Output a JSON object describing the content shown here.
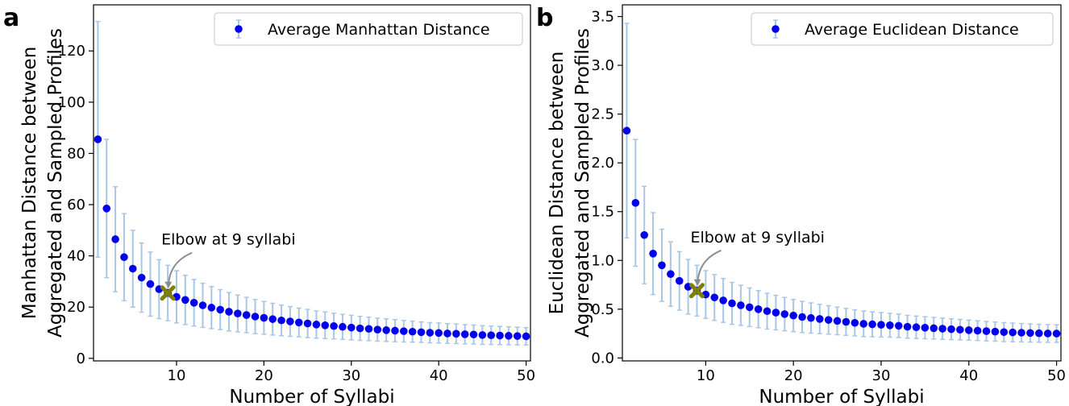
{
  "chart_data": [
    {
      "type": "scatter",
      "panel_label": "a",
      "xlabel": "Number of Syllabi",
      "ylabel_lines": [
        "Manhattan Distance between",
        "Aggregated and Sampled Profiles"
      ],
      "xlim": [
        0.5,
        50.5
      ],
      "ylim": [
        -1,
        138
      ],
      "xticks": [
        10,
        20,
        30,
        40,
        50
      ],
      "yticks": [
        0,
        20,
        40,
        60,
        80,
        100,
        120
      ],
      "legend": {
        "label": "Average Manhattan Distance",
        "location": "top-right"
      },
      "annotation": {
        "text": "Elbow at 9 syllabi",
        "x": 9,
        "y": 25.5
      },
      "series": [
        {
          "name": "Average Manhattan Distance",
          "x": [
            1,
            2,
            3,
            4,
            5,
            6,
            7,
            8,
            9,
            10,
            11,
            12,
            13,
            14,
            15,
            16,
            17,
            18,
            19,
            20,
            21,
            22,
            23,
            24,
            25,
            26,
            27,
            28,
            29,
            30,
            31,
            32,
            33,
            34,
            35,
            36,
            37,
            38,
            39,
            40,
            41,
            42,
            43,
            44,
            45,
            46,
            47,
            48,
            49,
            50
          ],
          "values": [
            85.5,
            58.5,
            46.5,
            39.5,
            35.0,
            31.5,
            29.0,
            27.0,
            25.5,
            24.0,
            22.8,
            21.7,
            20.7,
            19.8,
            19.0,
            18.2,
            17.5,
            16.9,
            16.3,
            15.8,
            15.3,
            14.8,
            14.4,
            14.0,
            13.6,
            13.2,
            12.9,
            12.6,
            12.3,
            12.0,
            11.7,
            11.5,
            11.2,
            11.0,
            10.8,
            10.6,
            10.4,
            10.2,
            10.0,
            9.9,
            9.7,
            9.6,
            9.4,
            9.3,
            9.1,
            9.0,
            8.9,
            8.8,
            8.7,
            8.6
          ],
          "error": [
            46.0,
            27.0,
            20.5,
            17.0,
            15.0,
            13.5,
            12.5,
            11.5,
            10.8,
            10.2,
            9.6,
            9.1,
            8.6,
            8.2,
            7.8,
            7.5,
            7.2,
            6.9,
            6.7,
            6.4,
            6.2,
            6.0,
            5.8,
            5.6,
            5.5,
            5.3,
            5.2,
            5.0,
            4.9,
            4.8,
            4.7,
            4.6,
            4.5,
            4.4,
            4.3,
            4.2,
            4.1,
            4.0,
            3.95,
            3.9,
            3.85,
            3.8,
            3.75,
            3.7,
            3.65,
            3.6,
            3.55,
            3.5,
            3.45,
            3.4
          ]
        }
      ],
      "colors": {
        "marker": "#0000ee",
        "errorbar": "#a9c6e6",
        "elbow": "#808000",
        "arrow": "#8c8c8c"
      }
    },
    {
      "type": "scatter",
      "panel_label": "b",
      "xlabel": "Number of Syllabi",
      "ylabel_lines": [
        "Euclidean Distance between",
        "Aggregated and Sampled Profiles"
      ],
      "xlim": [
        0.5,
        50.5
      ],
      "ylim": [
        -0.03,
        3.62
      ],
      "xticks": [
        10,
        20,
        30,
        40,
        50
      ],
      "yticks": [
        0.0,
        0.5,
        1.0,
        1.5,
        2.0,
        2.5,
        3.0,
        3.5
      ],
      "ytick_labels": [
        "0.0",
        "0.5",
        "1.0",
        "1.5",
        "2.0",
        "2.5",
        "3.0",
        "3.5"
      ],
      "legend": {
        "label": "Average Euclidean Distance",
        "location": "top-right"
      },
      "annotation": {
        "text": "Elbow at 9 syllabi",
        "x": 9,
        "y": 0.69
      },
      "series": [
        {
          "name": "Average Euclidean Distance",
          "x": [
            1,
            2,
            3,
            4,
            5,
            6,
            7,
            8,
            9,
            10,
            11,
            12,
            13,
            14,
            15,
            16,
            17,
            18,
            19,
            20,
            21,
            22,
            23,
            24,
            25,
            26,
            27,
            28,
            29,
            30,
            31,
            32,
            33,
            34,
            35,
            36,
            37,
            38,
            39,
            40,
            41,
            42,
            43,
            44,
            45,
            46,
            47,
            48,
            49,
            50
          ],
          "values": [
            2.33,
            1.59,
            1.26,
            1.07,
            0.95,
            0.86,
            0.79,
            0.73,
            0.69,
            0.65,
            0.62,
            0.59,
            0.56,
            0.54,
            0.52,
            0.5,
            0.48,
            0.465,
            0.45,
            0.435,
            0.42,
            0.41,
            0.4,
            0.39,
            0.38,
            0.37,
            0.36,
            0.35,
            0.345,
            0.34,
            0.335,
            0.33,
            0.32,
            0.315,
            0.31,
            0.305,
            0.3,
            0.295,
            0.29,
            0.285,
            0.28,
            0.275,
            0.27,
            0.265,
            0.262,
            0.259,
            0.256,
            0.253,
            0.251,
            0.25
          ],
          "error": [
            1.1,
            0.65,
            0.5,
            0.42,
            0.37,
            0.33,
            0.3,
            0.28,
            0.26,
            0.245,
            0.235,
            0.225,
            0.215,
            0.205,
            0.198,
            0.19,
            0.183,
            0.177,
            0.171,
            0.165,
            0.16,
            0.155,
            0.15,
            0.146,
            0.142,
            0.138,
            0.134,
            0.131,
            0.128,
            0.125,
            0.122,
            0.12,
            0.117,
            0.115,
            0.113,
            0.111,
            0.109,
            0.107,
            0.105,
            0.103,
            0.101,
            0.1,
            0.098,
            0.097,
            0.095,
            0.094,
            0.093,
            0.092,
            0.091,
            0.09
          ]
        }
      ],
      "colors": {
        "marker": "#0000ee",
        "errorbar": "#a9c6e6",
        "elbow": "#808000",
        "arrow": "#8c8c8c"
      }
    }
  ]
}
